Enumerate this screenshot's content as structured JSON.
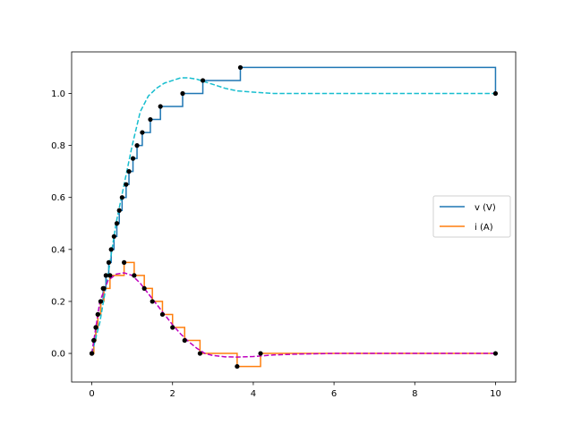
{
  "chart_data": {
    "type": "line",
    "title": "",
    "xlabel": "",
    "ylabel": "",
    "xlim": [
      -0.5,
      10.5
    ],
    "ylim": [
      -0.11,
      1.16
    ],
    "xticks": [
      0,
      2,
      4,
      6,
      8,
      10
    ],
    "yticks": [
      0.0,
      0.2,
      0.4,
      0.6,
      0.8,
      1.0
    ],
    "xtick_labels": [
      "0",
      "2",
      "4",
      "6",
      "8",
      "10"
    ],
    "ytick_labels": [
      "0.0",
      "0.2",
      "0.4",
      "0.6",
      "0.8",
      "1.0"
    ],
    "grid": false,
    "legend_position": "center-right",
    "series": [
      {
        "name": "v (V)",
        "style": "step",
        "color": "#1f77b4",
        "x": [
          0,
          0.05,
          0.1,
          0.15,
          0.22,
          0.28,
          0.35,
          0.42,
          0.48,
          0.55,
          0.62,
          0.68,
          0.75,
          0.85,
          0.92,
          1.02,
          1.12,
          1.25,
          1.45,
          1.7,
          2.25,
          2.75,
          3.68,
          10
        ],
        "y": [
          0,
          0.05,
          0.1,
          0.15,
          0.2,
          0.25,
          0.3,
          0.35,
          0.4,
          0.45,
          0.5,
          0.55,
          0.6,
          0.65,
          0.7,
          0.75,
          0.8,
          0.85,
          0.9,
          0.95,
          1.0,
          1.05,
          1.1,
          1.0
        ]
      },
      {
        "name": "i (A)",
        "style": "step",
        "color": "#ff7f0e",
        "x": [
          0,
          0.05,
          0.1,
          0.15,
          0.22,
          0.3,
          0.45,
          0.8,
          1.05,
          1.3,
          1.5,
          1.75,
          2.0,
          2.3,
          2.68,
          3.6,
          4.18,
          10
        ],
        "y": [
          0,
          0.05,
          0.1,
          0.15,
          0.2,
          0.25,
          0.3,
          0.35,
          0.3,
          0.25,
          0.2,
          0.15,
          0.1,
          0.05,
          0.0,
          -0.05,
          0.0,
          0.0
        ]
      },
      {
        "name": "",
        "style": "dashed",
        "color": "#17becf",
        "x": [
          0,
          0.2,
          0.4,
          0.6,
          0.8,
          1.0,
          1.2,
          1.4,
          1.6,
          1.8,
          2.0,
          2.2,
          2.4,
          2.6,
          2.8,
          3.0,
          3.3,
          3.6,
          4.0,
          4.5,
          5.0,
          6.0,
          10
        ],
        "y": [
          0,
          0.12,
          0.3,
          0.5,
          0.65,
          0.8,
          0.93,
          0.99,
          1.02,
          1.04,
          1.05,
          1.06,
          1.06,
          1.055,
          1.045,
          1.035,
          1.02,
          1.01,
          1.005,
          1.0,
          1.0,
          1.0,
          1.0
        ]
      },
      {
        "name": "",
        "style": "dashed",
        "color": "#bf00bf",
        "x": [
          0,
          0.2,
          0.4,
          0.6,
          0.8,
          1.0,
          1.2,
          1.4,
          1.6,
          1.8,
          2.0,
          2.2,
          2.4,
          2.6,
          2.8,
          3.0,
          3.3,
          3.6,
          4.0,
          4.5,
          5.0,
          6.0,
          7.0,
          10
        ],
        "y": [
          0,
          0.2,
          0.28,
          0.305,
          0.31,
          0.3,
          0.27,
          0.23,
          0.19,
          0.15,
          0.11,
          0.075,
          0.045,
          0.02,
          0.0,
          -0.008,
          -0.013,
          -0.014,
          -0.012,
          -0.006,
          -0.003,
          0.0,
          0.0,
          0.0
        ]
      }
    ],
    "markers": {
      "color": "#000000",
      "points": [
        [
          0,
          0
        ],
        [
          0.05,
          0.05
        ],
        [
          0.1,
          0.1
        ],
        [
          0.15,
          0.15
        ],
        [
          0.22,
          0.2
        ],
        [
          0.28,
          0.25
        ],
        [
          0.35,
          0.3
        ],
        [
          0.42,
          0.35
        ],
        [
          0.48,
          0.4
        ],
        [
          0.55,
          0.45
        ],
        [
          0.62,
          0.5
        ],
        [
          0.68,
          0.55
        ],
        [
          0.75,
          0.6
        ],
        [
          0.85,
          0.65
        ],
        [
          0.92,
          0.7
        ],
        [
          1.02,
          0.75
        ],
        [
          1.12,
          0.8
        ],
        [
          1.25,
          0.85
        ],
        [
          1.45,
          0.9
        ],
        [
          1.7,
          0.95
        ],
        [
          2.25,
          1.0
        ],
        [
          2.75,
          1.05
        ],
        [
          3.68,
          1.1
        ],
        [
          10,
          1.0
        ],
        [
          0,
          0
        ],
        [
          0.05,
          0.05
        ],
        [
          0.1,
          0.1
        ],
        [
          0.15,
          0.15
        ],
        [
          0.22,
          0.2
        ],
        [
          0.3,
          0.25
        ],
        [
          0.45,
          0.3
        ],
        [
          0.8,
          0.35
        ],
        [
          1.05,
          0.3
        ],
        [
          1.3,
          0.25
        ],
        [
          1.5,
          0.2
        ],
        [
          1.75,
          0.15
        ],
        [
          2.0,
          0.1
        ],
        [
          2.3,
          0.05
        ],
        [
          2.68,
          0.0
        ],
        [
          3.6,
          -0.05
        ],
        [
          4.18,
          0.0
        ],
        [
          10,
          0.0
        ]
      ]
    }
  }
}
